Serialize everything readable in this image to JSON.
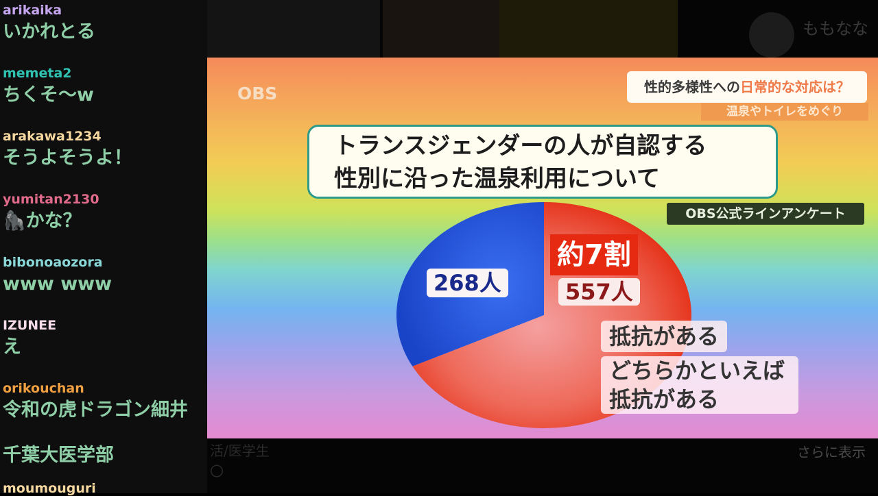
{
  "chat": {
    "messages": [
      {
        "user": "arikaika",
        "user_color": "#c7a6f0",
        "text": "いかれとる"
      },
      {
        "user": "memeta2",
        "user_color": "#2fc2b0",
        "text": "ちくそ〜w"
      },
      {
        "user": "arakawa1234",
        "user_color": "#f5d7a0",
        "text": "そうよそうよ！"
      },
      {
        "user": "yumitan2130",
        "user_color": "#e06a8a",
        "text": "🦍かな？"
      },
      {
        "user": "bibonoaozora",
        "user_color": "#8ad8d8",
        "text": "www www"
      },
      {
        "user": "IZUNEE",
        "user_color": "#f5dce8",
        "text": "え"
      },
      {
        "user": "orikouchan",
        "user_color": "#f0a040",
        "text": "令和の虎ドラゴン細井"
      },
      {
        "user": "",
        "user_color": "#f0a040",
        "text": "千葉大医学部"
      },
      {
        "user": "moumouguri",
        "user_color": "#f5d7a0",
        "text": ""
      }
    ]
  },
  "background_page": {
    "account_name": "ももなな",
    "more_label": "さらに表示",
    "lines": [
      "活/医学生",
      "〇"
    ]
  },
  "tv": {
    "logo": "OBS",
    "topic_prefix": "性的多様性への",
    "topic_highlight": "日常的な対応は？",
    "topic_sub": "温泉やトイレをめぐり",
    "question_line1": "トランスジェンダーの人が自認する",
    "question_line2": "性別に沿った温泉利用について",
    "source": "OBS公式ラインアンケート"
  },
  "chart_data": {
    "type": "pie",
    "slices": [
      {
        "label": "",
        "value": 268,
        "value_label": "268人",
        "color": "#1e4fd8"
      },
      {
        "label": "抵抗がある / どちらかといえば抵抗がある",
        "value": 557,
        "value_label": "557人",
        "color": "#e8301c"
      }
    ],
    "annotation": "約7割",
    "legend_labels": [
      "抵抗がある",
      "どちらかといえば",
      "抵抗がある"
    ]
  }
}
